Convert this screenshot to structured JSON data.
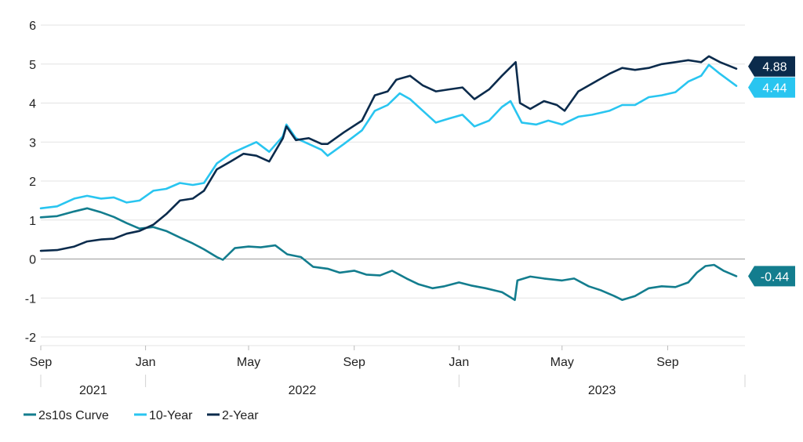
{
  "colors": {
    "y2": "#0b2b4c",
    "y10": "#29c5f0",
    "curve": "#137d8e",
    "grid": "#e3e3e3",
    "zero": "#9a9a9a"
  },
  "chart_data": {
    "type": "line",
    "ylim": [
      -2,
      6
    ],
    "yticks": [
      "-2",
      "-1",
      "0",
      "1",
      "2",
      "3",
      "4",
      "5",
      "6"
    ],
    "xlim": [
      "2021-09-01",
      "2023-11-30"
    ],
    "xticks": [
      {
        "date": "2021-09-01",
        "label": "Sep"
      },
      {
        "date": "2022-01-01",
        "label": "Jan"
      },
      {
        "date": "2022-05-01",
        "label": "May"
      },
      {
        "date": "2022-09-01",
        "label": "Sep"
      },
      {
        "date": "2023-01-01",
        "label": "Jan"
      },
      {
        "date": "2023-05-01",
        "label": "May"
      },
      {
        "date": "2023-09-01",
        "label": "Sep"
      }
    ],
    "years": [
      {
        "label": "2021",
        "from": "2021-09-01",
        "to": "2022-01-01"
      },
      {
        "label": "2022",
        "from": "2022-01-01",
        "to": "2023-01-01"
      },
      {
        "label": "2023",
        "from": "2023-01-01",
        "to": "2023-11-30"
      }
    ],
    "grid": true,
    "legend_position": "bottom-left",
    "series": [
      {
        "name": "2s10s Curve",
        "key": "curve",
        "end_label": "-0.44",
        "points": [
          [
            "2021-09-01",
            1.07
          ],
          [
            "2021-09-20",
            1.1
          ],
          [
            "2021-10-10",
            1.22
          ],
          [
            "2021-10-25",
            1.3
          ],
          [
            "2021-11-10",
            1.2
          ],
          [
            "2021-11-25",
            1.08
          ],
          [
            "2021-12-10",
            0.92
          ],
          [
            "2021-12-25",
            0.78
          ],
          [
            "2022-01-10",
            0.82
          ],
          [
            "2022-01-25",
            0.72
          ],
          [
            "2022-02-10",
            0.55
          ],
          [
            "2022-02-25",
            0.4
          ],
          [
            "2022-03-10",
            0.25
          ],
          [
            "2022-03-25",
            0.05
          ],
          [
            "2022-04-01",
            -0.02
          ],
          [
            "2022-04-15",
            0.28
          ],
          [
            "2022-05-01",
            0.32
          ],
          [
            "2022-05-15",
            0.3
          ],
          [
            "2022-06-01",
            0.35
          ],
          [
            "2022-06-15",
            0.12
          ],
          [
            "2022-07-01",
            0.05
          ],
          [
            "2022-07-15",
            -0.2
          ],
          [
            "2022-08-01",
            -0.25
          ],
          [
            "2022-08-15",
            -0.35
          ],
          [
            "2022-09-01",
            -0.3
          ],
          [
            "2022-09-15",
            -0.4
          ],
          [
            "2022-10-01",
            -0.42
          ],
          [
            "2022-10-15",
            -0.3
          ],
          [
            "2022-11-01",
            -0.5
          ],
          [
            "2022-11-15",
            -0.65
          ],
          [
            "2022-12-01",
            -0.75
          ],
          [
            "2022-12-15",
            -0.7
          ],
          [
            "2023-01-01",
            -0.6
          ],
          [
            "2023-01-15",
            -0.68
          ],
          [
            "2023-02-01",
            -0.75
          ],
          [
            "2023-02-20",
            -0.85
          ],
          [
            "2023-03-07",
            -1.05
          ],
          [
            "2023-03-10",
            -0.55
          ],
          [
            "2023-03-25",
            -0.45
          ],
          [
            "2023-04-10",
            -0.5
          ],
          [
            "2023-05-01",
            -0.55
          ],
          [
            "2023-05-15",
            -0.5
          ],
          [
            "2023-06-01",
            -0.7
          ],
          [
            "2023-06-15",
            -0.8
          ],
          [
            "2023-07-01",
            -0.95
          ],
          [
            "2023-07-10",
            -1.05
          ],
          [
            "2023-07-25",
            -0.95
          ],
          [
            "2023-08-10",
            -0.75
          ],
          [
            "2023-08-25",
            -0.7
          ],
          [
            "2023-09-10",
            -0.72
          ],
          [
            "2023-09-25",
            -0.6
          ],
          [
            "2023-10-05",
            -0.35
          ],
          [
            "2023-10-15",
            -0.18
          ],
          [
            "2023-10-25",
            -0.15
          ],
          [
            "2023-11-05",
            -0.3
          ],
          [
            "2023-11-20",
            -0.44
          ]
        ]
      },
      {
        "name": "10-Year",
        "key": "y10",
        "end_label": "4.44",
        "points": [
          [
            "2021-09-01",
            1.3
          ],
          [
            "2021-09-20",
            1.35
          ],
          [
            "2021-10-10",
            1.55
          ],
          [
            "2021-10-25",
            1.62
          ],
          [
            "2021-11-10",
            1.55
          ],
          [
            "2021-11-25",
            1.58
          ],
          [
            "2021-12-10",
            1.45
          ],
          [
            "2021-12-25",
            1.5
          ],
          [
            "2022-01-10",
            1.75
          ],
          [
            "2022-01-25",
            1.8
          ],
          [
            "2022-02-10",
            1.95
          ],
          [
            "2022-02-25",
            1.9
          ],
          [
            "2022-03-10",
            1.95
          ],
          [
            "2022-03-25",
            2.45
          ],
          [
            "2022-04-10",
            2.7
          ],
          [
            "2022-04-25",
            2.85
          ],
          [
            "2022-05-10",
            3.0
          ],
          [
            "2022-05-25",
            2.75
          ],
          [
            "2022-06-10",
            3.15
          ],
          [
            "2022-06-14",
            3.45
          ],
          [
            "2022-06-25",
            3.1
          ],
          [
            "2022-07-10",
            2.95
          ],
          [
            "2022-07-25",
            2.8
          ],
          [
            "2022-08-01",
            2.65
          ],
          [
            "2022-08-20",
            2.95
          ],
          [
            "2022-09-10",
            3.3
          ],
          [
            "2022-09-25",
            3.8
          ],
          [
            "2022-10-10",
            3.95
          ],
          [
            "2022-10-24",
            4.25
          ],
          [
            "2022-11-05",
            4.1
          ],
          [
            "2022-11-20",
            3.8
          ],
          [
            "2022-12-05",
            3.5
          ],
          [
            "2022-12-20",
            3.6
          ],
          [
            "2023-01-05",
            3.7
          ],
          [
            "2023-01-19",
            3.4
          ],
          [
            "2023-02-05",
            3.55
          ],
          [
            "2023-02-20",
            3.9
          ],
          [
            "2023-03-02",
            4.05
          ],
          [
            "2023-03-15",
            3.5
          ],
          [
            "2023-04-01",
            3.45
          ],
          [
            "2023-04-15",
            3.55
          ],
          [
            "2023-05-01",
            3.45
          ],
          [
            "2023-05-20",
            3.65
          ],
          [
            "2023-06-05",
            3.7
          ],
          [
            "2023-06-25",
            3.8
          ],
          [
            "2023-07-10",
            3.95
          ],
          [
            "2023-07-25",
            3.95
          ],
          [
            "2023-08-10",
            4.15
          ],
          [
            "2023-08-25",
            4.2
          ],
          [
            "2023-09-10",
            4.28
          ],
          [
            "2023-09-25",
            4.55
          ],
          [
            "2023-10-10",
            4.7
          ],
          [
            "2023-10-19",
            4.98
          ],
          [
            "2023-11-01",
            4.75
          ],
          [
            "2023-11-20",
            4.44
          ]
        ]
      },
      {
        "name": "2-Year",
        "key": "y2",
        "end_label": "4.88",
        "points": [
          [
            "2021-09-01",
            0.21
          ],
          [
            "2021-09-20",
            0.23
          ],
          [
            "2021-10-10",
            0.32
          ],
          [
            "2021-10-25",
            0.45
          ],
          [
            "2021-11-10",
            0.5
          ],
          [
            "2021-11-25",
            0.52
          ],
          [
            "2021-12-10",
            0.65
          ],
          [
            "2021-12-25",
            0.72
          ],
          [
            "2022-01-10",
            0.88
          ],
          [
            "2022-01-25",
            1.15
          ],
          [
            "2022-02-10",
            1.5
          ],
          [
            "2022-02-25",
            1.55
          ],
          [
            "2022-03-10",
            1.75
          ],
          [
            "2022-03-25",
            2.3
          ],
          [
            "2022-04-10",
            2.5
          ],
          [
            "2022-04-25",
            2.7
          ],
          [
            "2022-05-10",
            2.65
          ],
          [
            "2022-05-25",
            2.5
          ],
          [
            "2022-06-10",
            3.1
          ],
          [
            "2022-06-14",
            3.4
          ],
          [
            "2022-06-25",
            3.05
          ],
          [
            "2022-07-10",
            3.1
          ],
          [
            "2022-07-25",
            2.95
          ],
          [
            "2022-08-01",
            2.95
          ],
          [
            "2022-08-20",
            3.25
          ],
          [
            "2022-09-10",
            3.55
          ],
          [
            "2022-09-25",
            4.2
          ],
          [
            "2022-10-10",
            4.3
          ],
          [
            "2022-10-20",
            4.6
          ],
          [
            "2022-11-05",
            4.7
          ],
          [
            "2022-11-20",
            4.45
          ],
          [
            "2022-12-05",
            4.3
          ],
          [
            "2022-12-20",
            4.35
          ],
          [
            "2023-01-05",
            4.4
          ],
          [
            "2023-01-19",
            4.1
          ],
          [
            "2023-02-05",
            4.35
          ],
          [
            "2023-02-20",
            4.7
          ],
          [
            "2023-03-08",
            5.05
          ],
          [
            "2023-03-13",
            4.0
          ],
          [
            "2023-03-25",
            3.85
          ],
          [
            "2023-04-10",
            4.05
          ],
          [
            "2023-04-25",
            3.95
          ],
          [
            "2023-05-04",
            3.8
          ],
          [
            "2023-05-20",
            4.3
          ],
          [
            "2023-06-05",
            4.5
          ],
          [
            "2023-06-25",
            4.75
          ],
          [
            "2023-07-10",
            4.9
          ],
          [
            "2023-07-25",
            4.85
          ],
          [
            "2023-08-10",
            4.9
          ],
          [
            "2023-08-25",
            5.0
          ],
          [
            "2023-09-10",
            5.05
          ],
          [
            "2023-09-25",
            5.1
          ],
          [
            "2023-10-10",
            5.05
          ],
          [
            "2023-10-19",
            5.2
          ],
          [
            "2023-11-01",
            5.05
          ],
          [
            "2023-11-20",
            4.88
          ]
        ]
      }
    ]
  }
}
